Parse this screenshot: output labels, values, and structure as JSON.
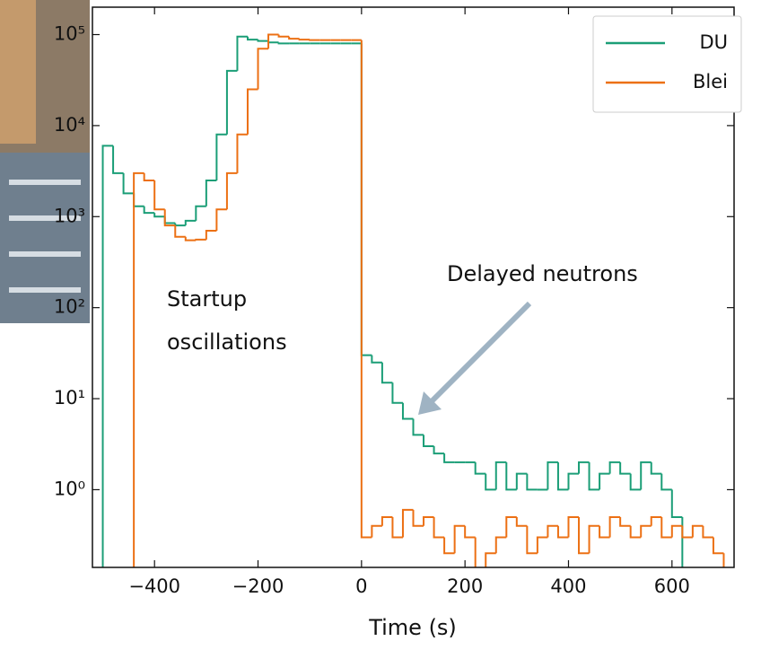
{
  "chart_data": {
    "type": "histogram",
    "xlabel": "Time (s)",
    "bins": [
      -520,
      -500,
      -480,
      -460,
      -440,
      -420,
      -400,
      -380,
      -360,
      -340,
      -320,
      -300,
      -280,
      -260,
      -240,
      -220,
      -200,
      -180,
      -160,
      -140,
      -120,
      -100,
      -80,
      -60,
      -40,
      -20,
      0,
      20,
      40,
      60,
      80,
      100,
      120,
      140,
      160,
      180,
      200,
      220,
      240,
      260,
      280,
      300,
      320,
      340,
      360,
      380,
      400,
      420,
      440,
      460,
      480,
      500,
      520,
      540,
      560,
      580,
      600,
      620,
      640,
      660,
      680,
      700,
      720
    ],
    "series": [
      {
        "name": "DU",
        "color": "#1b9e77",
        "values": [
          0,
          6000,
          3000,
          1800,
          1300,
          1100,
          1000,
          850,
          800,
          900,
          1300,
          2500,
          8000,
          40000,
          95000,
          88000,
          85000,
          82000,
          80000,
          80000,
          80000,
          80000,
          80000,
          80000,
          80000,
          80000,
          30,
          25,
          15,
          9,
          6,
          4,
          3,
          2.5,
          2,
          2,
          2,
          1.5,
          1,
          2,
          1,
          1.5,
          1,
          1,
          2,
          1,
          1.5,
          2,
          1,
          1.5,
          2,
          1.5,
          1,
          2,
          1.5,
          1,
          0.5,
          0,
          0,
          0,
          0,
          0
        ]
      },
      {
        "name": "Blei",
        "color": "#ec7014",
        "values": [
          0,
          0,
          0,
          0,
          3000,
          2500,
          1200,
          800,
          600,
          550,
          560,
          700,
          1200,
          3000,
          8000,
          25000,
          70000,
          100000,
          95000,
          90000,
          88000,
          87000,
          87000,
          87000,
          87000,
          87000,
          0.3,
          0.4,
          0.5,
          0.3,
          0.6,
          0.4,
          0.5,
          0.3,
          0.2,
          0.4,
          0.3,
          0,
          0.2,
          0.3,
          0.5,
          0.4,
          0.2,
          0.3,
          0.4,
          0.3,
          0.5,
          0.2,
          0.4,
          0.3,
          0.5,
          0.4,
          0.3,
          0.4,
          0.5,
          0.3,
          0.4,
          0.3,
          0.4,
          0.3,
          0.2,
          0
        ]
      }
    ],
    "xlim": [
      -520,
      720
    ],
    "xticks": [
      {
        "value": -400,
        "label": "−400"
      },
      {
        "value": -200,
        "label": "−200"
      },
      0,
      200,
      400,
      600
    ],
    "ylim": [
      0.14,
      200000
    ],
    "log_y": true,
    "yticks": [
      {
        "value": 1,
        "label": "10⁰"
      },
      {
        "value": 10,
        "label": "10¹"
      },
      {
        "value": 100,
        "label": "10²"
      },
      {
        "value": 1000,
        "label": "10³"
      },
      {
        "value": 10000,
        "label": "10⁴"
      },
      {
        "value": 100000,
        "label": "10⁵"
      }
    ],
    "legend": "upper right",
    "annotations": [
      {
        "lines": [
          "Startup",
          "oscillations"
        ]
      },
      {
        "lines": [
          "Delayed neutrons"
        ]
      }
    ]
  }
}
